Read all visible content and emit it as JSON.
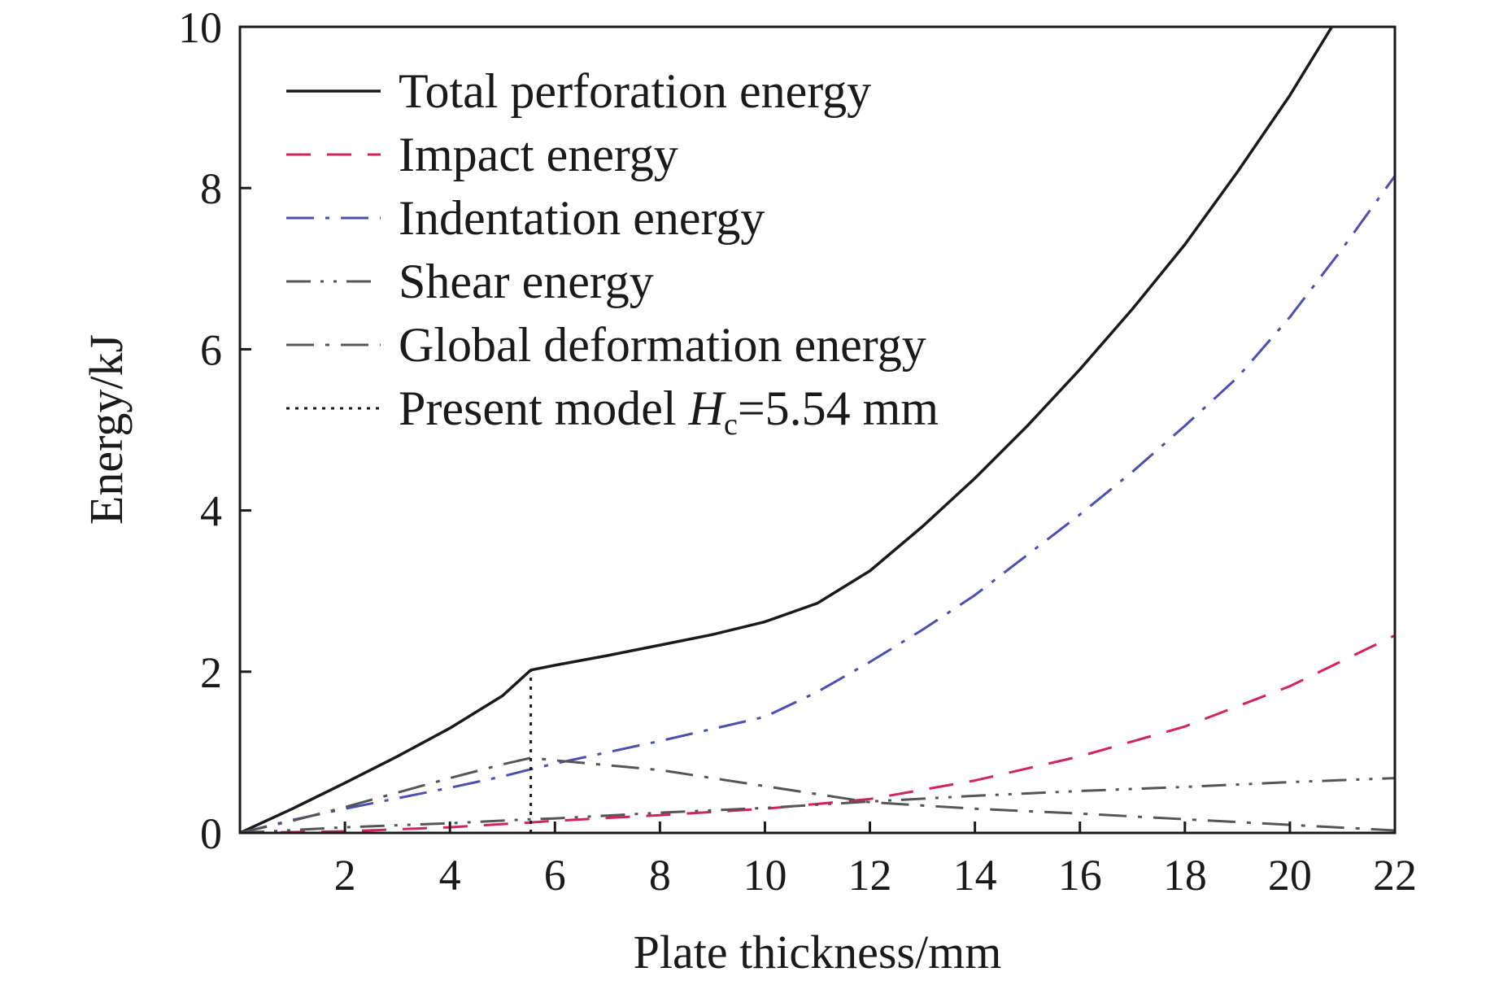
{
  "chart_data": {
    "type": "line",
    "title": "",
    "xlabel": "Plate thickness/mm",
    "ylabel": "Energy/kJ",
    "xlim": [
      0,
      22
    ],
    "ylim": [
      0,
      10
    ],
    "x_ticks": [
      2,
      4,
      6,
      8,
      10,
      12,
      14,
      16,
      18,
      20,
      22
    ],
    "y_ticks": [
      0,
      2,
      4,
      6,
      8,
      10
    ],
    "grid": false,
    "legend_position": "top-left",
    "series": [
      {
        "name": "Total perforation energy",
        "color": "#1a1a1a",
        "style": "solid",
        "x": [
          0,
          1,
          2,
          3,
          4,
          5,
          5.54,
          6,
          7,
          8,
          9,
          10,
          11,
          12,
          13,
          14,
          15,
          16,
          17,
          18,
          19,
          20,
          20.8
        ],
        "y": [
          0,
          0.3,
          0.62,
          0.95,
          1.3,
          1.7,
          2.02,
          2.08,
          2.2,
          2.33,
          2.46,
          2.62,
          2.85,
          3.25,
          3.8,
          4.4,
          5.05,
          5.75,
          6.5,
          7.3,
          8.2,
          9.15,
          10.0
        ]
      },
      {
        "name": "Impact energy",
        "color": "#d4235a",
        "style": "dash",
        "x": [
          0,
          2,
          4,
          5.54,
          6,
          8,
          10,
          12,
          14,
          16,
          18,
          20,
          22
        ],
        "y": [
          0,
          0.02,
          0.07,
          0.13,
          0.15,
          0.22,
          0.3,
          0.42,
          0.65,
          0.95,
          1.32,
          1.82,
          2.45
        ]
      },
      {
        "name": "Indentation energy",
        "color": "#4a4fb0",
        "style": "dashdot",
        "x": [
          0,
          1,
          2,
          3,
          4,
          5,
          5.54,
          6,
          7,
          8,
          9,
          10,
          11,
          12,
          13,
          14,
          15,
          16,
          17,
          18,
          19,
          20,
          21,
          22
        ],
        "y": [
          0,
          0.16,
          0.3,
          0.43,
          0.56,
          0.7,
          0.79,
          0.86,
          1.0,
          1.14,
          1.29,
          1.44,
          1.75,
          2.12,
          2.52,
          2.95,
          3.45,
          3.95,
          4.48,
          5.05,
          5.65,
          6.4,
          7.25,
          8.15
        ]
      },
      {
        "name": "Shear energy",
        "color": "#555555",
        "style": "dashdotdot",
        "x": [
          0,
          2,
          4,
          5.54,
          6,
          8,
          10,
          12,
          14,
          16,
          18,
          20,
          22
        ],
        "y": [
          0,
          0.07,
          0.12,
          0.17,
          0.18,
          0.25,
          0.31,
          0.39,
          0.46,
          0.52,
          0.57,
          0.63,
          0.68
        ]
      },
      {
        "name": "Global deformation energy",
        "color": "#555555",
        "style": "dashdot",
        "x": [
          0,
          1,
          2,
          3,
          4,
          5,
          5.54,
          6,
          8,
          10,
          12,
          14,
          16,
          18,
          20,
          22
        ],
        "y": [
          0,
          0.15,
          0.32,
          0.5,
          0.68,
          0.85,
          0.93,
          0.9,
          0.78,
          0.58,
          0.38,
          0.3,
          0.24,
          0.17,
          0.1,
          0.03
        ]
      },
      {
        "name": "Present model H_c=5.54 mm",
        "color": "#1a1a1a",
        "style": "dot",
        "x": [
          5.54,
          5.54
        ],
        "y": [
          0,
          2.02
        ]
      }
    ],
    "legend_entries": [
      {
        "text": "Total perforation energy"
      },
      {
        "text": "Impact energy"
      },
      {
        "text": "Indentation energy"
      },
      {
        "text": "Shear energy"
      },
      {
        "text": "Global deformation energy"
      },
      {
        "text_before": "Present model ",
        "text_var": "H",
        "text_sub": "c",
        "text_after": "=5.54 mm"
      }
    ]
  }
}
